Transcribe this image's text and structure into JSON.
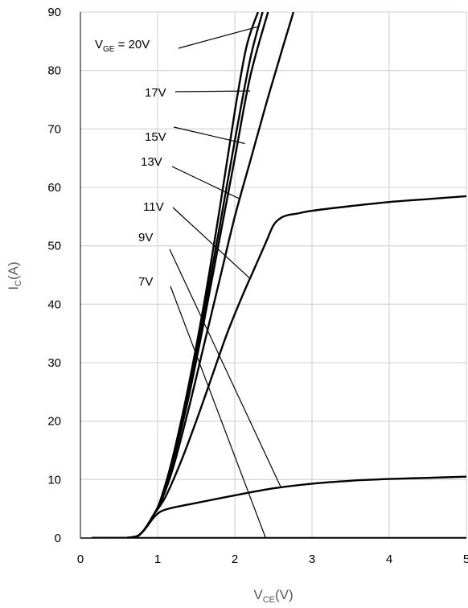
{
  "chart_data": {
    "type": "line",
    "title": "",
    "xlabel": {
      "main": "V",
      "sub": "CE",
      "unit": "(V)"
    },
    "ylabel": {
      "main": "I",
      "sub": "C",
      "unit": "(A)"
    },
    "xlim": [
      0,
      5
    ],
    "ylim": [
      0,
      90
    ],
    "xticks": [
      "0",
      "1",
      "2",
      "3",
      "4",
      "5"
    ],
    "yticks": [
      "0",
      "10",
      "20",
      "30",
      "40",
      "50",
      "60",
      "70",
      "80",
      "90"
    ],
    "grid": true,
    "legend": "none",
    "line_color": "#000000",
    "grid_color": "#d9d9d9",
    "series": [
      {
        "name": "20V",
        "x": [
          0.15,
          0.65,
          0.8,
          0.95,
          1.05,
          1.2,
          1.4,
          1.6,
          1.8,
          2.0,
          2.15,
          2.3
        ],
        "y": [
          0,
          0.1,
          1,
          4,
          7,
          14,
          26,
          40,
          56,
          73,
          84,
          90
        ]
      },
      {
        "name": "17V",
        "x": [
          0.15,
          0.65,
          0.8,
          0.95,
          1.05,
          1.2,
          1.4,
          1.6,
          1.8,
          2.0,
          2.2,
          2.36
        ],
        "y": [
          0,
          0.1,
          1,
          4,
          6.8,
          13.5,
          25,
          38.5,
          53,
          68,
          82,
          90
        ]
      },
      {
        "name": "15V",
        "x": [
          0.15,
          0.65,
          0.8,
          0.95,
          1.05,
          1.2,
          1.4,
          1.6,
          1.8,
          2.0,
          2.2,
          2.43
        ],
        "y": [
          0,
          0.1,
          1,
          4,
          6.6,
          13,
          24,
          37,
          51,
          65,
          79,
          90
        ]
      },
      {
        "name": "13V",
        "x": [
          0.15,
          0.65,
          0.8,
          0.95,
          1.05,
          1.2,
          1.4,
          1.6,
          1.8,
          2.0,
          2.2,
          2.4,
          2.6,
          2.76
        ],
        "y": [
          0,
          0.1,
          1,
          4,
          6.4,
          12,
          22,
          33,
          44,
          55,
          64.5,
          74,
          83,
          90
        ]
      },
      {
        "name": "11V",
        "x": [
          0.15,
          0.65,
          0.8,
          0.95,
          1.1,
          1.3,
          1.5,
          1.7,
          1.9,
          2.1,
          2.25,
          2.4,
          2.5,
          2.6,
          2.7,
          2.8,
          3.0,
          3.5,
          4.0,
          4.5,
          5.0
        ],
        "y": [
          0,
          0.1,
          1,
          4,
          7,
          13,
          20,
          27.5,
          35,
          41.5,
          46,
          50.5,
          53.5,
          54.8,
          55.3,
          55.5,
          56,
          56.8,
          57.5,
          58,
          58.5
        ]
      },
      {
        "name": "9V",
        "x": [
          0.15,
          0.65,
          0.8,
          0.95,
          1.05,
          1.2,
          1.5,
          2.0,
          2.5,
          3.0,
          3.5,
          4.0,
          4.5,
          5.0
        ],
        "y": [
          0,
          0.1,
          1,
          3.5,
          4.6,
          5.2,
          6,
          7.3,
          8.5,
          9.3,
          9.8,
          10.1,
          10.3,
          10.5
        ]
      },
      {
        "name": "7V",
        "x": [
          0.15,
          5.0
        ],
        "y": [
          0,
          0
        ]
      }
    ],
    "annotations": [
      {
        "id": "ann-20v",
        "text": "V",
        "sub": "GE",
        "suffix": " = 20V",
        "target": [
          2.3,
          87.5
        ]
      },
      {
        "id": "ann-17v",
        "text": "17V",
        "target": [
          2.2,
          76.5
        ]
      },
      {
        "id": "ann-15v",
        "text": "15V",
        "target": [
          2.13,
          67.5
        ]
      },
      {
        "id": "ann-13v",
        "text": "13V",
        "target": [
          2.07,
          58
        ]
      },
      {
        "id": "ann-11v",
        "text": "11V",
        "target": [
          2.19,
          44.5
        ]
      },
      {
        "id": "ann-9v",
        "text": "9V",
        "target": [
          2.6,
          8.6
        ]
      },
      {
        "id": "ann-7v",
        "text": "7V",
        "target": [
          2.4,
          0
        ]
      }
    ]
  }
}
